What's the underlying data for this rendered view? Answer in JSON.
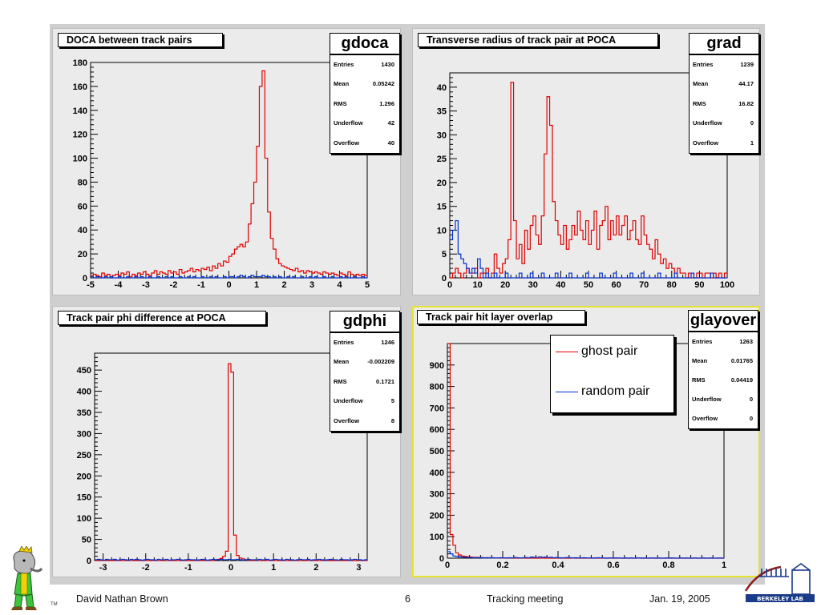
{
  "footer": {
    "author": "David Nathan Brown",
    "page": "6",
    "meeting": "Tracking meeting",
    "date": "Jan. 19, 2005",
    "tm": "TM",
    "lab_logo_text": "BERKELEY LAB"
  },
  "chart_data": [
    {
      "type": "histogram",
      "name": "gdoca",
      "title": "DOCA between track pairs",
      "xlim": [
        -5,
        5
      ],
      "ylim": [
        0,
        180
      ],
      "x_ticks": [
        "-5",
        "-4",
        "-3",
        "-2",
        "-1",
        "0",
        "1",
        "2",
        "3",
        "4",
        "5"
      ],
      "y_ticks": [
        "0",
        "20",
        "40",
        "60",
        "80",
        "100",
        "120",
        "140",
        "160",
        "180"
      ],
      "stats": [
        {
          "label": "Entries",
          "value": "1430"
        },
        {
          "label": "Mean",
          "value": "0.05242"
        },
        {
          "label": "RMS",
          "value": "1.296"
        },
        {
          "label": "Underflow",
          "value": "42"
        },
        {
          "label": "Overflow",
          "value": "40"
        }
      ],
      "series": [
        {
          "color": "#e00000",
          "bin_width": 0.1,
          "x_start": -5,
          "values": [
            2,
            3,
            2,
            1,
            4,
            2,
            3,
            1,
            2,
            3,
            2,
            4,
            3,
            5,
            1,
            3,
            2,
            4,
            3,
            5,
            3,
            2,
            4,
            6,
            3,
            5,
            4,
            3,
            6,
            4,
            5,
            3,
            7,
            4,
            5,
            6,
            8,
            5,
            7,
            6,
            8,
            7,
            9,
            6,
            10,
            8,
            12,
            10,
            14,
            13,
            18,
            20,
            24,
            26,
            28,
            26,
            30,
            45,
            62,
            80,
            110,
            160,
            173,
            100,
            55,
            33,
            24,
            16,
            12,
            10,
            9,
            8,
            7,
            6,
            8,
            5,
            6,
            4,
            6,
            5,
            4,
            5,
            4,
            3,
            5,
            4,
            3,
            4,
            3,
            2,
            4,
            3,
            2,
            5,
            3,
            2,
            3,
            2,
            3,
            2
          ]
        },
        {
          "color": "#0030d0",
          "bin_width": 0.1,
          "x_start": -5,
          "values": [
            1,
            0,
            1,
            0,
            0,
            1,
            0,
            1,
            0,
            0,
            1,
            0,
            0,
            1,
            0,
            0,
            1,
            0,
            1,
            0,
            0,
            1,
            0,
            0,
            1,
            0,
            0,
            1,
            0,
            1,
            0,
            0,
            1,
            0,
            0,
            1,
            0,
            1,
            0,
            0,
            1,
            0,
            0,
            1,
            0,
            1,
            0,
            0,
            1,
            0,
            1,
            1,
            0,
            1,
            2,
            1,
            0,
            1,
            2,
            1,
            1,
            1,
            2,
            1,
            1,
            0,
            1,
            0,
            1,
            0,
            0,
            1,
            0,
            1,
            0,
            0,
            1,
            0,
            0,
            1,
            0,
            1,
            0,
            0,
            1,
            0,
            0,
            1,
            0,
            0,
            1,
            0,
            1,
            0,
            0,
            1,
            0,
            0,
            1,
            0
          ]
        }
      ]
    },
    {
      "type": "histogram",
      "name": "grad",
      "title": "Transverse radius of track pair at POCA",
      "xlim": [
        0,
        100
      ],
      "ylim": [
        0,
        43
      ],
      "x_ticks": [
        "0",
        "10",
        "20",
        "30",
        "40",
        "50",
        "60",
        "70",
        "80",
        "90",
        "100"
      ],
      "y_ticks": [
        "0",
        "5",
        "10",
        "15",
        "20",
        "25",
        "30",
        "35",
        "40"
      ],
      "stats": [
        {
          "label": "Entries",
          "value": "1239"
        },
        {
          "label": "Mean",
          "value": "44.17"
        },
        {
          "label": "RMS",
          "value": "16.82"
        },
        {
          "label": "Underflow",
          "value": "0"
        },
        {
          "label": "Overflow",
          "value": "1"
        }
      ],
      "series": [
        {
          "color": "#e00000",
          "bin_width": 1,
          "x_start": 0,
          "values": [
            0,
            1,
            2,
            1,
            0,
            1,
            2,
            1,
            1,
            2,
            0,
            1,
            1,
            2,
            0,
            1,
            5,
            2,
            1,
            3,
            4,
            8,
            41,
            12,
            4,
            7,
            3,
            10,
            6,
            11,
            13,
            9,
            7,
            13,
            26,
            38,
            32,
            16,
            12,
            9,
            7,
            11,
            6,
            8,
            11,
            9,
            14,
            10,
            8,
            12,
            7,
            10,
            14,
            6,
            11,
            12,
            15,
            8,
            12,
            9,
            13,
            9,
            11,
            13,
            8,
            10,
            12,
            8,
            7,
            13,
            9,
            7,
            6,
            4,
            8,
            5,
            3,
            4,
            2,
            3,
            2,
            1,
            2,
            1,
            1,
            0,
            1,
            1,
            0,
            1,
            1,
            0,
            1,
            1,
            0,
            1,
            0,
            1,
            0,
            1
          ]
        },
        {
          "color": "#0030d0",
          "bin_width": 1,
          "x_start": 0,
          "values": [
            8,
            10,
            12,
            5,
            4,
            3,
            2,
            1,
            2,
            1,
            4,
            2,
            0,
            1,
            0,
            0,
            1,
            0,
            0,
            0,
            1,
            0,
            0,
            0,
            0,
            1,
            0,
            0,
            0,
            1,
            0,
            0,
            0,
            1,
            0,
            0,
            0,
            0,
            1,
            0,
            0,
            0,
            0,
            1,
            0,
            0,
            0,
            0,
            0,
            1,
            0,
            0,
            0,
            0,
            1,
            0,
            0,
            0,
            0,
            1,
            0,
            0,
            0,
            0,
            0,
            1,
            0,
            0,
            0,
            1,
            0,
            0,
            0,
            0,
            0,
            1,
            0,
            0,
            0,
            0,
            0,
            1,
            0,
            0,
            0,
            0,
            0,
            1,
            0,
            0,
            0,
            0,
            0,
            0,
            1,
            0,
            0,
            0,
            0,
            0
          ]
        }
      ]
    },
    {
      "type": "histogram",
      "name": "gdphi",
      "title": "Track pair phi difference at POCA",
      "xlim": [
        -3.2,
        3.2
      ],
      "ylim": [
        0,
        490
      ],
      "x_ticks": [
        "-3",
        "-2",
        "-1",
        "0",
        "1",
        "2",
        "3"
      ],
      "x_tick_values": [
        -3,
        -2,
        -1,
        0,
        1,
        2,
        3
      ],
      "y_ticks": [
        "0",
        "50",
        "100",
        "150",
        "200",
        "250",
        "300",
        "350",
        "400",
        "450"
      ],
      "stats": [
        {
          "label": "Entries",
          "value": "1246"
        },
        {
          "label": "Mean",
          "value": "-0.002209"
        },
        {
          "label": "RMS",
          "value": "0.1721"
        },
        {
          "label": "Underflow",
          "value": "5"
        },
        {
          "label": "Overflow",
          "value": "8"
        }
      ],
      "series": [
        {
          "color": "#e00000",
          "bin_width": 0.064,
          "x_start": -3.2,
          "values": [
            0,
            1,
            0,
            0,
            1,
            0,
            0,
            1,
            0,
            0,
            0,
            1,
            0,
            0,
            0,
            1,
            0,
            0,
            1,
            0,
            0,
            0,
            1,
            0,
            0,
            1,
            0,
            0,
            0,
            1,
            0,
            0,
            1,
            0,
            0,
            0,
            1,
            0,
            0,
            1,
            0,
            0,
            1,
            0,
            2,
            3,
            5,
            10,
            22,
            465,
            445,
            60,
            12,
            6,
            4,
            2,
            1,
            1,
            0,
            1,
            0,
            0,
            1,
            0,
            0,
            1,
            0,
            0,
            0,
            1,
            0,
            0,
            1,
            0,
            0,
            0,
            1,
            0,
            0,
            1,
            0,
            0,
            0,
            1,
            0,
            0,
            1,
            0,
            0,
            0,
            1,
            0,
            0,
            1,
            0,
            0,
            0,
            1,
            0,
            0
          ]
        },
        {
          "color": "#0030d0",
          "bin_width": 0.064,
          "x_start": -3.2,
          "values": [
            2,
            3,
            2,
            1,
            3,
            2,
            2,
            3,
            1,
            2,
            3,
            2,
            1,
            3,
            2,
            3,
            2,
            1,
            2,
            3,
            2,
            2,
            1,
            3,
            2,
            2,
            3,
            1,
            2,
            2,
            3,
            2,
            1,
            2,
            3,
            2,
            2,
            1,
            2,
            3,
            2,
            1,
            2,
            3,
            2,
            2,
            3,
            2,
            2,
            3,
            2,
            2,
            3,
            2,
            1,
            2,
            3,
            2,
            2,
            1,
            3,
            2,
            2,
            3,
            1,
            2,
            3,
            2,
            2,
            1,
            3,
            2,
            2,
            1,
            2,
            3,
            2,
            2,
            3,
            1,
            2,
            2,
            3,
            2,
            1,
            2,
            3,
            2,
            2,
            1,
            3,
            2,
            2,
            1,
            2,
            3,
            2,
            2,
            1,
            2
          ]
        }
      ]
    },
    {
      "type": "histogram",
      "name": "glayover",
      "title": "Track pair hit layer overlap",
      "xlim": [
        0,
        1
      ],
      "ylim": [
        0,
        1000
      ],
      "x_ticks": [
        "0",
        "0.2",
        "0.4",
        "0.6",
        "0.8",
        "1"
      ],
      "y_ticks": [
        "0",
        "100",
        "200",
        "300",
        "400",
        "500",
        "600",
        "700",
        "800",
        "900"
      ],
      "stats": [
        {
          "label": "Entries",
          "value": "1263"
        },
        {
          "label": "Mean",
          "value": "0.01765"
        },
        {
          "label": "RMS",
          "value": "0.04419"
        },
        {
          "label": "Underflow",
          "value": "0"
        },
        {
          "label": "Overflow",
          "value": "0"
        }
      ],
      "legend": [
        {
          "label": "ghost pair",
          "color": "#e00000"
        },
        {
          "label": "random pair",
          "color": "#0030d0"
        }
      ],
      "series": [
        {
          "color": "#e00000",
          "bin_width": 0.01,
          "x_start": 0,
          "values": [
            1000,
            110,
            60,
            25,
            15,
            10,
            8,
            6,
            5,
            4,
            4,
            3,
            3,
            2,
            2,
            2,
            1,
            1,
            1,
            1,
            1,
            0,
            1,
            0,
            1,
            0,
            0,
            1,
            0,
            0,
            1,
            0,
            0,
            0,
            1,
            0,
            0,
            0,
            0,
            1,
            0,
            0,
            0,
            0,
            0,
            1,
            0,
            0,
            0,
            0,
            0,
            0,
            1,
            0,
            0,
            0,
            0,
            0,
            0,
            0,
            1,
            0,
            0,
            0,
            0,
            0,
            0,
            0,
            0,
            1,
            0,
            0,
            0,
            0,
            0,
            0,
            0,
            0,
            0,
            0,
            1,
            0,
            0,
            0,
            0,
            0,
            0,
            0,
            0,
            0,
            0,
            0,
            0,
            0,
            0,
            0,
            0,
            0,
            0,
            0
          ]
        },
        {
          "color": "#0030d0",
          "bin_width": 0.01,
          "x_start": 0,
          "values": [
            30,
            20,
            10,
            8,
            6,
            5,
            4,
            3,
            3,
            2,
            2,
            3,
            2,
            1,
            2,
            1,
            2,
            1,
            1,
            2,
            1,
            1,
            2,
            1,
            3,
            2,
            1,
            2,
            3,
            2,
            5,
            4,
            3,
            6,
            4,
            5,
            3,
            4,
            2,
            3,
            2,
            1,
            2,
            3,
            2,
            1,
            2,
            1,
            1,
            2,
            1,
            1,
            0,
            1,
            2,
            1,
            1,
            0,
            1,
            1,
            0,
            1,
            1,
            0,
            1,
            0,
            1,
            0,
            1,
            1,
            0,
            1,
            0,
            1,
            1,
            0,
            1,
            0,
            0,
            1,
            0,
            1,
            0,
            0,
            1,
            0,
            1,
            0,
            0,
            1,
            0,
            0,
            1,
            0,
            0,
            1,
            0,
            0,
            1,
            0
          ]
        }
      ]
    }
  ]
}
